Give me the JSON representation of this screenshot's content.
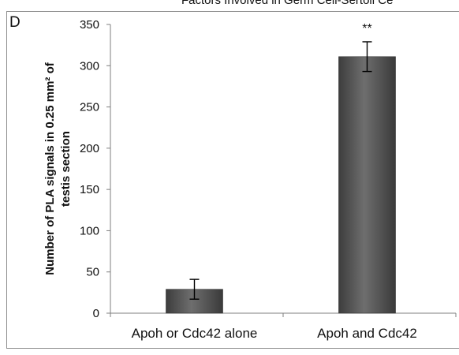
{
  "header_fragment": "Factors Involved in Germ Cell-Sertoli Ce",
  "panel_label": "D",
  "chart_data": {
    "type": "bar",
    "categories": [
      "Apoh or Cdc42 alone",
      "Apoh and Cdc42"
    ],
    "values": [
      29,
      311
    ],
    "errors": [
      12,
      18
    ],
    "annotations": [
      "",
      "**"
    ],
    "ylabel": "Number of PLA signals in 0.25 mm² of testis section",
    "ylabel_lines": [
      "Number of PLA signals in 0.25 mm² of",
      "testis section"
    ],
    "ylim": [
      0,
      350
    ],
    "yticks": [
      0,
      50,
      100,
      150,
      200,
      250,
      300,
      350
    ],
    "bar_color": "#595959",
    "grid": false,
    "legend": "none"
  }
}
